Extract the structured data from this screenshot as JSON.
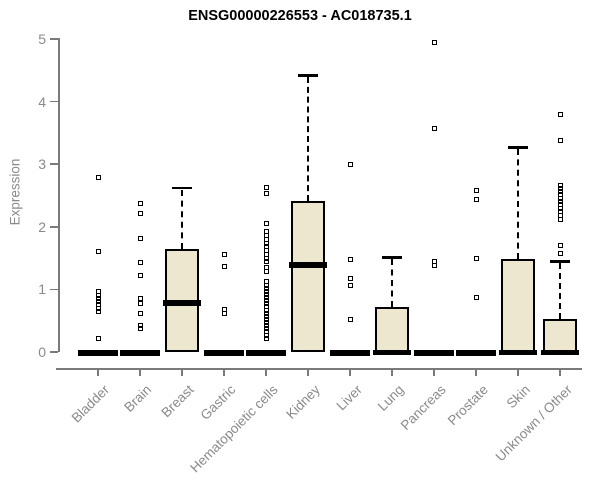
{
  "chart_data": {
    "type": "boxplot",
    "title": "ENSG00000226553 - AC018735.1",
    "ylabel": "Expression",
    "xlabel": "",
    "ylim": [
      0,
      5
    ],
    "yticks": [
      0,
      1,
      2,
      3,
      4,
      5
    ],
    "grid": false,
    "legend": "none",
    "colors": {
      "box_fill": "#EDE7CF",
      "box_stroke": "#000000",
      "axis_line": "#7a7a7a",
      "tick_label": "#8a8a8a",
      "title_text": "#000000",
      "background": "#ffffff"
    },
    "categories": [
      "Bladder",
      "Brain",
      "Breast",
      "Gastric",
      "Hematopoietic cells",
      "Kidney",
      "Liver",
      "Lung",
      "Pancreas",
      "Prostate",
      "Skin",
      "Unknown / Other"
    ],
    "boxes": [
      {
        "category": "Bladder",
        "q1": 0,
        "median": 0,
        "q3": 0,
        "whisker_low": 0,
        "whisker_high": 0,
        "outliers": [
          2.78,
          1.61,
          0.96,
          0.91,
          0.86,
          0.81,
          0.76,
          0.7,
          0.65,
          0.21
        ]
      },
      {
        "category": "Brain",
        "q1": 0,
        "median": 0,
        "q3": 0,
        "whisker_low": 0,
        "whisker_high": 0,
        "outliers": [
          2.38,
          2.22,
          1.81,
          1.43,
          1.22,
          0.85,
          0.78,
          0.61,
          0.43,
          0.37
        ]
      },
      {
        "category": "Breast",
        "q1": 0,
        "median": 0.79,
        "q3": 1.64,
        "whisker_low": 0,
        "whisker_high": 2.62,
        "outliers": []
      },
      {
        "category": "Gastric",
        "q1": 0,
        "median": 0,
        "q3": 0,
        "whisker_low": 0,
        "whisker_high": 0,
        "outliers": [
          1.56,
          1.36,
          0.68,
          0.62
        ]
      },
      {
        "category": "Hematopoietic cells",
        "q1": 0,
        "median": 0,
        "q3": 0,
        "whisker_low": 0,
        "whisker_high": 0,
        "outliers": [
          2.62,
          2.53,
          2.05,
          1.92,
          1.86,
          1.8,
          1.74,
          1.68,
          1.62,
          1.56,
          1.5,
          1.44,
          1.35,
          1.28,
          1.12,
          1.07,
          1.02,
          0.97,
          0.92,
          0.87,
          0.82,
          0.77,
          0.72,
          0.67,
          0.62,
          0.57,
          0.52,
          0.47,
          0.42,
          0.37,
          0.32,
          0.27,
          0.22
        ]
      },
      {
        "category": "Kidney",
        "q1": 0,
        "median": 1.39,
        "q3": 2.41,
        "whisker_low": 0,
        "whisker_high": 4.42,
        "outliers": []
      },
      {
        "category": "Liver",
        "q1": 0,
        "median": 0,
        "q3": 0,
        "whisker_low": 0,
        "whisker_high": 0,
        "outliers": [
          3.0,
          1.47,
          1.18,
          1.06,
          0.52
        ]
      },
      {
        "category": "Lung",
        "q1": 0,
        "median": 0,
        "q3": 0.72,
        "whisker_low": 0,
        "whisker_high": 1.51,
        "outliers": []
      },
      {
        "category": "Pancreas",
        "q1": 0,
        "median": 0,
        "q3": 0,
        "whisker_low": 0,
        "whisker_high": 0,
        "outliers": [
          4.94,
          3.57,
          1.44,
          1.38
        ]
      },
      {
        "category": "Prostate",
        "q1": 0,
        "median": 0,
        "q3": 0,
        "whisker_low": 0,
        "whisker_high": 0,
        "outliers": [
          2.58,
          2.43,
          1.5,
          0.87
        ]
      },
      {
        "category": "Skin",
        "q1": 0,
        "median": 0,
        "q3": 1.49,
        "whisker_low": 0,
        "whisker_high": 3.27,
        "outliers": []
      },
      {
        "category": "Unknown / Other",
        "q1": 0,
        "median": 0,
        "q3": 0.53,
        "whisker_low": 0,
        "whisker_high": 1.45,
        "outliers": [
          3.8,
          3.38,
          2.66,
          2.61,
          2.56,
          2.51,
          2.46,
          2.41,
          2.36,
          2.3,
          2.24,
          2.18,
          2.12,
          1.7,
          1.58
        ]
      }
    ]
  }
}
